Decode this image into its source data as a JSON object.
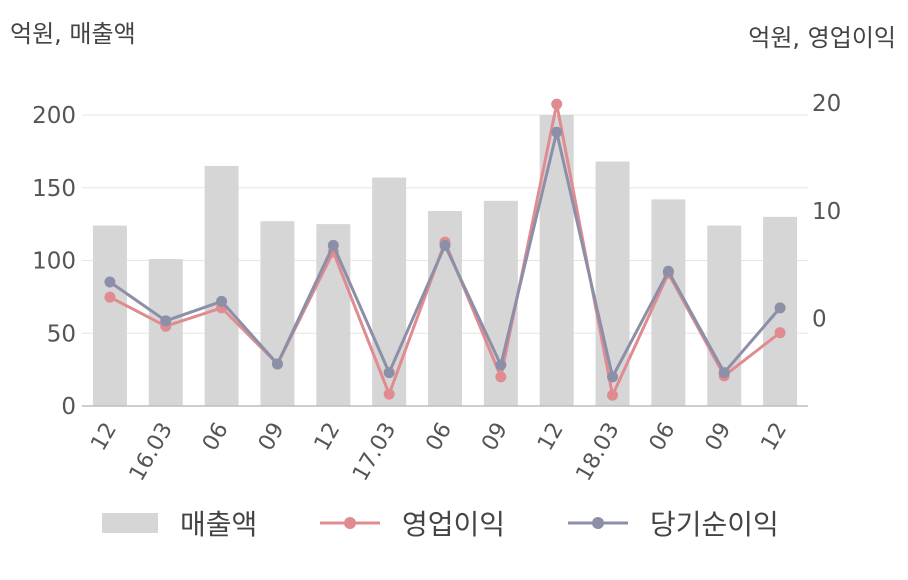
{
  "units": {
    "left": "억원, 매출액",
    "right": "억원, 영업이익"
  },
  "colors": {
    "bar": "#d6d6d6",
    "op_income": "#e08b8f",
    "net_income": "#8c8fa8",
    "grid": "#e6e6e6",
    "axis": "#bdbdbd"
  },
  "legend": [
    {
      "key": "revenue",
      "label": "매출액"
    },
    {
      "key": "op_income",
      "label": "영업이익"
    },
    {
      "key": "net_income",
      "label": "당기순이익"
    }
  ],
  "chart_data": {
    "type": "bar",
    "categories": [
      "12",
      "16.03",
      "06",
      "09",
      "12",
      "17.03",
      "06",
      "09",
      "12",
      "18.03",
      "06",
      "09",
      "12"
    ],
    "left_axis": {
      "ylim": [
        0,
        200
      ],
      "ticks": [
        0,
        50,
        100,
        150,
        200
      ]
    },
    "right_axis": {
      "ylim": [
        -8.1,
        20
      ],
      "ticks": [
        0,
        10,
        20
      ]
    },
    "series": [
      {
        "name": "매출액",
        "kind": "bar",
        "axis": "left",
        "values": [
          124,
          101,
          165,
          127,
          125,
          157,
          134,
          141,
          200,
          168,
          142,
          124,
          130
        ]
      },
      {
        "name": "영업이익",
        "kind": "line",
        "axis": "right",
        "values": [
          2.0,
          -0.7,
          1.0,
          -4.2,
          6.2,
          -7.0,
          7.1,
          -5.4,
          19.9,
          -7.1,
          4.2,
          -5.3,
          -1.3
        ]
      },
      {
        "name": "당기순이익",
        "kind": "line",
        "axis": "right",
        "values": [
          3.4,
          -0.2,
          1.6,
          -4.2,
          6.8,
          -5.0,
          6.8,
          -4.3,
          17.3,
          -5.4,
          4.4,
          -5.0,
          1.0
        ]
      }
    ],
    "grid": true,
    "legend_position": "bottom"
  }
}
